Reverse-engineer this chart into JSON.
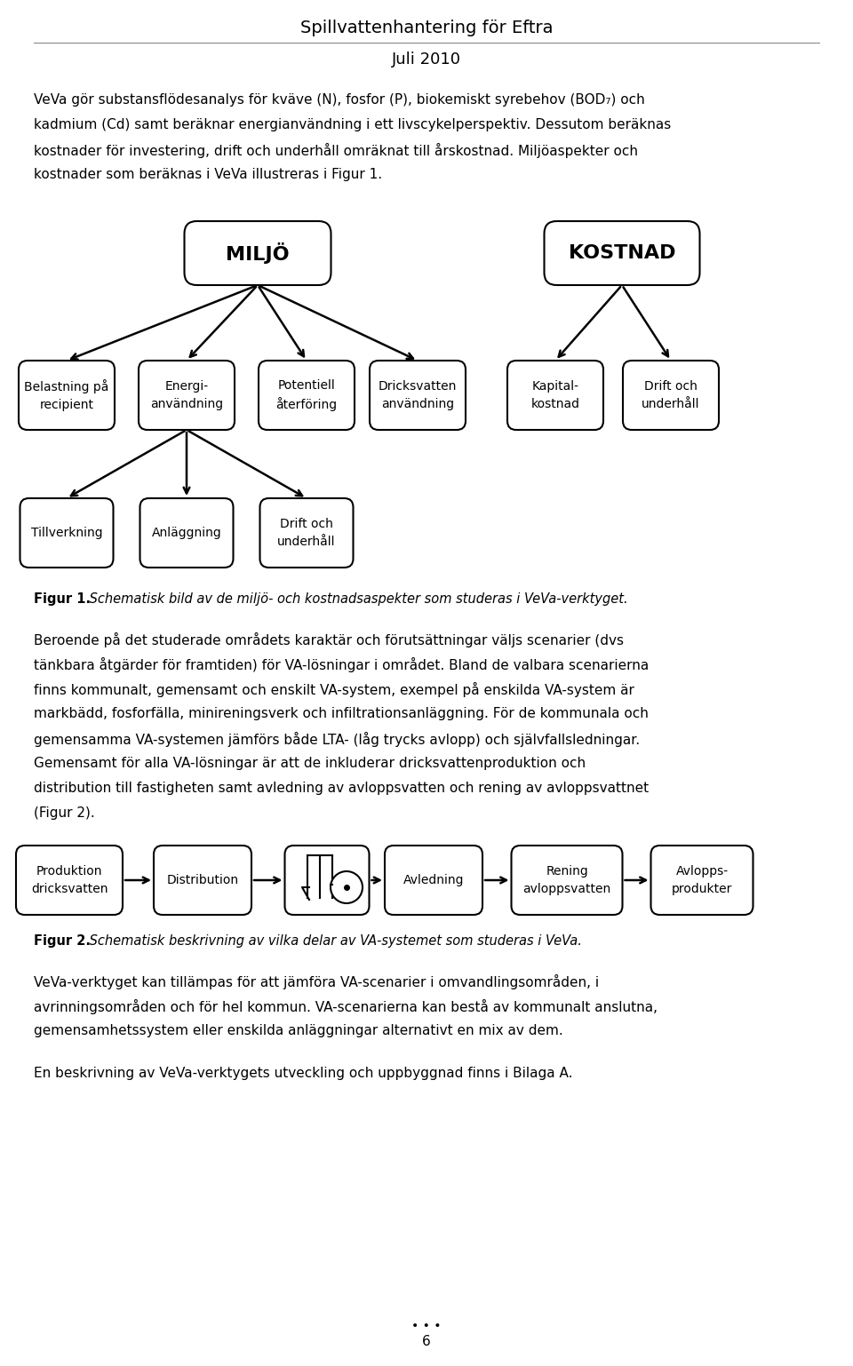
{
  "title": "Spillvattenhantering för Eftra",
  "subtitle": "Juli 2010",
  "miljo_label": "MILJÖ",
  "kostnad_label": "KOSTNAD",
  "miljo_children": [
    "Belastning på\nrecipient",
    "Energi-\nanvändning",
    "Potentiell\nåterföring",
    "Dricksvatten\nanvändning"
  ],
  "kostnad_children": [
    "Kapital-\nkostnad",
    "Drift och\nunderhåll"
  ],
  "energi_children": [
    "Tillverkning",
    "Anläggning",
    "Drift och\nunderhåll"
  ],
  "figur1_bold": "Figur 1.",
  "figur1_italic": " Schematisk bild av de miljö- och kostnadsaspekter som studeras i VeVa-verktyget.",
  "figur2_bold": "Figur 2.",
  "figur2_italic": " Schematisk beskrivning av vilka delar av VA-systemet som studeras i VeVa.",
  "page_number": "6",
  "bg_color": "#ffffff",
  "text_color": "#000000",
  "box_edge_color": "#000000"
}
